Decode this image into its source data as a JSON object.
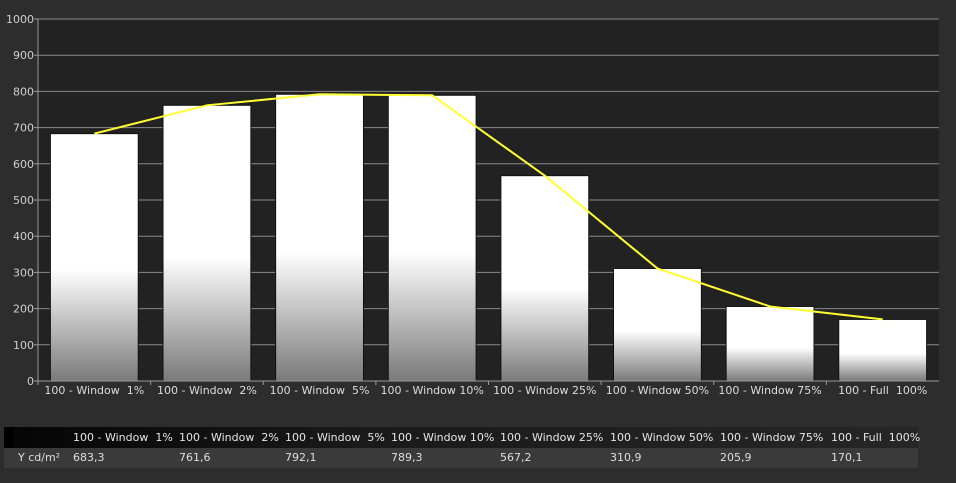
{
  "chart_data": {
    "type": "bar",
    "categories": [
      "100 - Window  1%",
      "100 - Window  2%",
      "100 - Window  5%",
      "100 - Window 10%",
      "100 - Window 25%",
      "100 - Window 50%",
      "100 - Window 75%",
      "100 - Full  100%"
    ],
    "values": [
      683.3,
      761.6,
      792.1,
      789.3,
      567.2,
      310.9,
      205.9,
      170.1
    ],
    "line_values": [
      683.3,
      761.6,
      792.1,
      789.3,
      567.2,
      310.9,
      205.9,
      170.1
    ],
    "title": "",
    "xlabel": "",
    "ylabel": "",
    "ylim": [
      0,
      1000
    ],
    "yticks": [
      0,
      100,
      200,
      300,
      400,
      500,
      600,
      700,
      800,
      900,
      1000
    ],
    "grid": true,
    "legend": "none",
    "colors": {
      "plot_background": "#222222",
      "grid": "#8a8a8a",
      "bar_top": "#ffffff",
      "bar_bottom": "#6a6a6a",
      "line": "#ffff33"
    }
  },
  "table": {
    "headers": [
      "100 - Window  1%",
      "100 - Window  2%",
      "100 - Window  5%",
      "100 - Window 10%",
      "100 - Window 25%",
      "100 - Window 50%",
      "100 - Window 75%",
      "100 - Full  100%"
    ],
    "row_label": "Y cd/m²",
    "row_values": [
      "683,3",
      "761,6",
      "792,1",
      "789,3",
      "567,2",
      "310,9",
      "205,9",
      "170,1"
    ]
  }
}
